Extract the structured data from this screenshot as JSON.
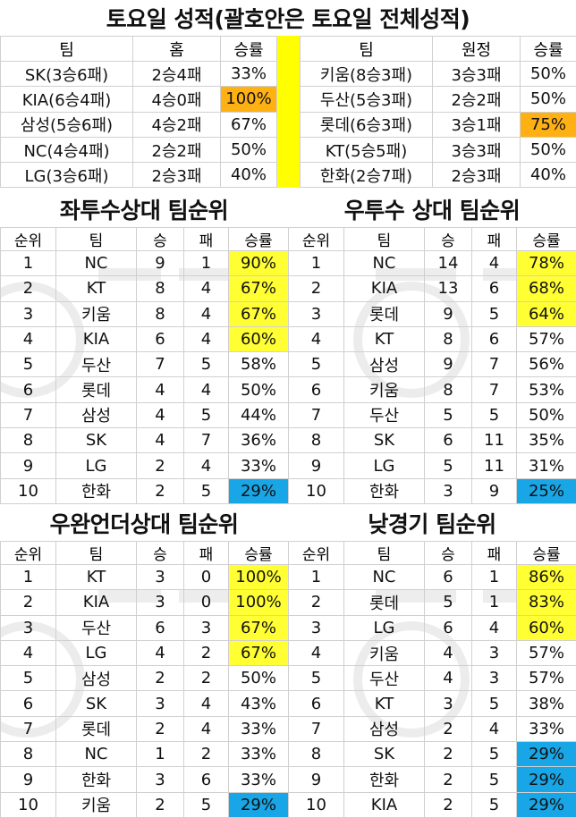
{
  "title": "토요일 성적(괄호안은 토요일 전체성적)",
  "top": {
    "home": {
      "headers": [
        "팀",
        "홈",
        "승률"
      ],
      "rows": [
        {
          "team": "SK(3승6패)",
          "record": "2승4패",
          "pct": "33%",
          "hl": ""
        },
        {
          "team": "KIA(6승4패)",
          "record": "4승0패",
          "pct": "100%",
          "hl": "orange"
        },
        {
          "team": "삼성(5승6패)",
          "record": "4승2패",
          "pct": "67%",
          "hl": ""
        },
        {
          "team": "NC(4승4패)",
          "record": "2승2패",
          "pct": "50%",
          "hl": ""
        },
        {
          "team": "LG(3승6패)",
          "record": "2승3패",
          "pct": "40%",
          "hl": ""
        }
      ]
    },
    "away": {
      "headers": [
        "팀",
        "원정",
        "승률"
      ],
      "rows": [
        {
          "team": "키움(8승3패)",
          "record": "3승3패",
          "pct": "50%",
          "hl": ""
        },
        {
          "team": "두산(5승3패)",
          "record": "2승2패",
          "pct": "50%",
          "hl": ""
        },
        {
          "team": "롯데(6승3패)",
          "record": "3승1패",
          "pct": "75%",
          "hl": "orange"
        },
        {
          "team": "KT(5승5패)",
          "record": "3승3패",
          "pct": "50%",
          "hl": ""
        },
        {
          "team": "한화(2승7패)",
          "record": "2승3패",
          "pct": "40%",
          "hl": ""
        }
      ]
    }
  },
  "rank_headers": [
    "순위",
    "팀",
    "승",
    "패",
    "승률"
  ],
  "sections": [
    {
      "title": "좌투수상대 팀순위",
      "rows": [
        {
          "rank": "1",
          "team": "NC",
          "w": "9",
          "l": "1",
          "pct": "90%",
          "hl": "yellow"
        },
        {
          "rank": "2",
          "team": "KT",
          "w": "8",
          "l": "4",
          "pct": "67%",
          "hl": "yellow"
        },
        {
          "rank": "3",
          "team": "키움",
          "w": "8",
          "l": "4",
          "pct": "67%",
          "hl": "yellow"
        },
        {
          "rank": "4",
          "team": "KIA",
          "w": "6",
          "l": "4",
          "pct": "60%",
          "hl": "yellow"
        },
        {
          "rank": "5",
          "team": "두산",
          "w": "7",
          "l": "5",
          "pct": "58%",
          "hl": ""
        },
        {
          "rank": "6",
          "team": "롯데",
          "w": "4",
          "l": "4",
          "pct": "50%",
          "hl": ""
        },
        {
          "rank": "7",
          "team": "삼성",
          "w": "4",
          "l": "5",
          "pct": "44%",
          "hl": ""
        },
        {
          "rank": "8",
          "team": "SK",
          "w": "4",
          "l": "7",
          "pct": "36%",
          "hl": ""
        },
        {
          "rank": "9",
          "team": "LG",
          "w": "2",
          "l": "4",
          "pct": "33%",
          "hl": ""
        },
        {
          "rank": "10",
          "team": "한화",
          "w": "2",
          "l": "5",
          "pct": "29%",
          "hl": "blue"
        }
      ]
    },
    {
      "title": "우투수 상대 팀순위",
      "rows": [
        {
          "rank": "1",
          "team": "NC",
          "w": "14",
          "l": "4",
          "pct": "78%",
          "hl": "yellow"
        },
        {
          "rank": "2",
          "team": "KIA",
          "w": "13",
          "l": "6",
          "pct": "68%",
          "hl": "yellow"
        },
        {
          "rank": "3",
          "team": "롯데",
          "w": "9",
          "l": "5",
          "pct": "64%",
          "hl": "yellow"
        },
        {
          "rank": "4",
          "team": "KT",
          "w": "8",
          "l": "6",
          "pct": "57%",
          "hl": ""
        },
        {
          "rank": "5",
          "team": "삼성",
          "w": "9",
          "l": "7",
          "pct": "56%",
          "hl": ""
        },
        {
          "rank": "6",
          "team": "키움",
          "w": "8",
          "l": "7",
          "pct": "53%",
          "hl": ""
        },
        {
          "rank": "7",
          "team": "두산",
          "w": "5",
          "l": "5",
          "pct": "50%",
          "hl": ""
        },
        {
          "rank": "8",
          "team": "SK",
          "w": "6",
          "l": "11",
          "pct": "35%",
          "hl": ""
        },
        {
          "rank": "9",
          "team": "LG",
          "w": "5",
          "l": "11",
          "pct": "31%",
          "hl": ""
        },
        {
          "rank": "10",
          "team": "한화",
          "w": "3",
          "l": "9",
          "pct": "25%",
          "hl": "blue"
        }
      ]
    },
    {
      "title": "우완언더상대 팀순위",
      "rows": [
        {
          "rank": "1",
          "team": "KT",
          "w": "3",
          "l": "0",
          "pct": "100%",
          "hl": "yellow"
        },
        {
          "rank": "2",
          "team": "KIA",
          "w": "3",
          "l": "0",
          "pct": "100%",
          "hl": "yellow"
        },
        {
          "rank": "3",
          "team": "두산",
          "w": "6",
          "l": "3",
          "pct": "67%",
          "hl": "yellow"
        },
        {
          "rank": "4",
          "team": "LG",
          "w": "4",
          "l": "2",
          "pct": "67%",
          "hl": "yellow"
        },
        {
          "rank": "5",
          "team": "삼성",
          "w": "2",
          "l": "2",
          "pct": "50%",
          "hl": ""
        },
        {
          "rank": "6",
          "team": "SK",
          "w": "3",
          "l": "4",
          "pct": "43%",
          "hl": ""
        },
        {
          "rank": "7",
          "team": "롯데",
          "w": "2",
          "l": "4",
          "pct": "33%",
          "hl": ""
        },
        {
          "rank": "8",
          "team": "NC",
          "w": "1",
          "l": "2",
          "pct": "33%",
          "hl": ""
        },
        {
          "rank": "9",
          "team": "한화",
          "w": "3",
          "l": "6",
          "pct": "33%",
          "hl": ""
        },
        {
          "rank": "10",
          "team": "키움",
          "w": "2",
          "l": "5",
          "pct": "29%",
          "hl": "blue"
        }
      ]
    },
    {
      "title": "낮경기 팀순위",
      "rows": [
        {
          "rank": "1",
          "team": "NC",
          "w": "6",
          "l": "1",
          "pct": "86%",
          "hl": "yellow"
        },
        {
          "rank": "2",
          "team": "롯데",
          "w": "5",
          "l": "1",
          "pct": "83%",
          "hl": "yellow"
        },
        {
          "rank": "3",
          "team": "LG",
          "w": "6",
          "l": "4",
          "pct": "60%",
          "hl": "yellow"
        },
        {
          "rank": "4",
          "team": "키움",
          "w": "4",
          "l": "3",
          "pct": "57%",
          "hl": ""
        },
        {
          "rank": "5",
          "team": "두산",
          "w": "4",
          "l": "3",
          "pct": "57%",
          "hl": ""
        },
        {
          "rank": "6",
          "team": "KT",
          "w": "3",
          "l": "5",
          "pct": "38%",
          "hl": ""
        },
        {
          "rank": "7",
          "team": "삼성",
          "w": "2",
          "l": "4",
          "pct": "33%",
          "hl": ""
        },
        {
          "rank": "8",
          "team": "SK",
          "w": "2",
          "l": "5",
          "pct": "29%",
          "hl": "blue"
        },
        {
          "rank": "9",
          "team": "한화",
          "w": "2",
          "l": "5",
          "pct": "29%",
          "hl": "blue"
        },
        {
          "rank": "10",
          "team": "KIA",
          "w": "2",
          "l": "5",
          "pct": "29%",
          "hl": "blue"
        }
      ]
    }
  ],
  "colors": {
    "yellow": "#ffff33",
    "orange": "#ffb114",
    "blue": "#19a6e6",
    "strip": "#ffff00"
  }
}
